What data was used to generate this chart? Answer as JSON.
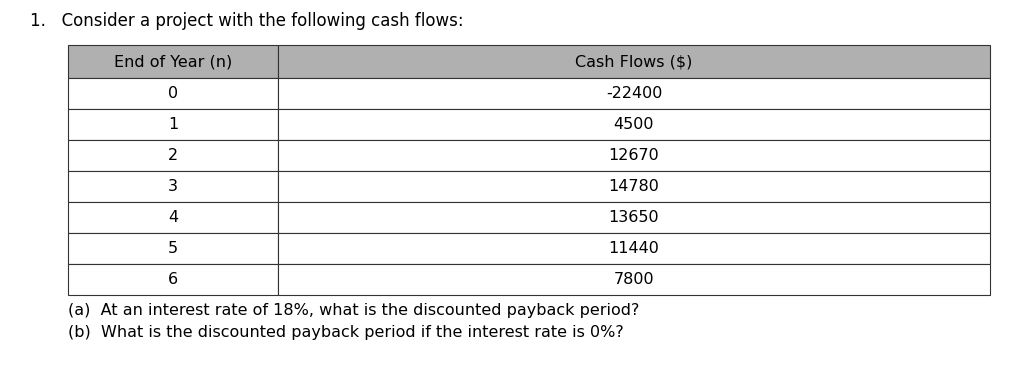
{
  "title": "1.   Consider a project with the following cash flows:",
  "col_headers": [
    "End of Year (n)",
    "Cash Flows ($)"
  ],
  "rows": [
    [
      "0",
      "-22400"
    ],
    [
      "1",
      "4500"
    ],
    [
      "2",
      "12670"
    ],
    [
      "3",
      "14780"
    ],
    [
      "4",
      "13650"
    ],
    [
      "5",
      "11440"
    ],
    [
      "6",
      "7800"
    ]
  ],
  "footer_lines": [
    "(a)  At an interest rate of 18%, what is the discounted payback period?",
    "(b)  What is the discounted payback period if the interest rate is 0%?"
  ],
  "header_bg": "#b0b0b0",
  "row_bg": "#ffffff",
  "border_color": "#333333",
  "header_text_color": "#000000",
  "row_text_color": "#000000",
  "title_fontsize": 12,
  "header_fontsize": 11.5,
  "cell_fontsize": 11.5,
  "footer_fontsize": 11.5,
  "fig_width": 10.24,
  "fig_height": 3.77,
  "dpi": 100
}
